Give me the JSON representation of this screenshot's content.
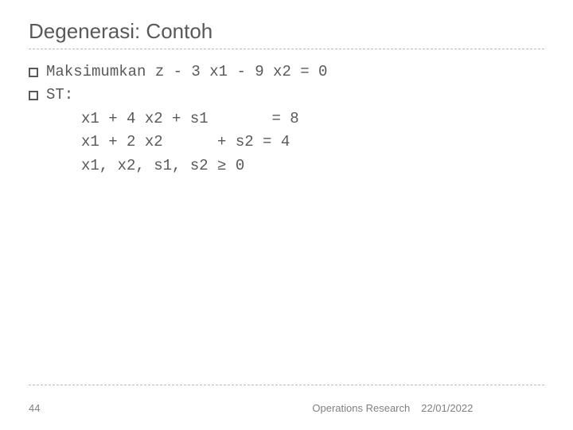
{
  "title": "Degenerasi: Contoh",
  "lines": {
    "l1": "Maksimumkan z - 3 x1 - 9 x2 = 0",
    "l2": "ST:",
    "c1": "x1 + 4 x2 + s1       = 8",
    "c2": "x1 + 2 x2      + s2 = 4",
    "c3": "x1, x2, s1, s2 ≥ 0"
  },
  "footer": {
    "page": "44",
    "center": "Operations Research",
    "date": "22/01/2022"
  },
  "colors": {
    "text": "#595959",
    "divider": "#bbbbbb",
    "footer_text": "#808080",
    "background": "#ffffff"
  },
  "typography": {
    "title_fontsize": 26,
    "body_fontsize": 19,
    "footer_fontsize": 13,
    "body_font": "Courier New",
    "title_font": "Arial"
  }
}
